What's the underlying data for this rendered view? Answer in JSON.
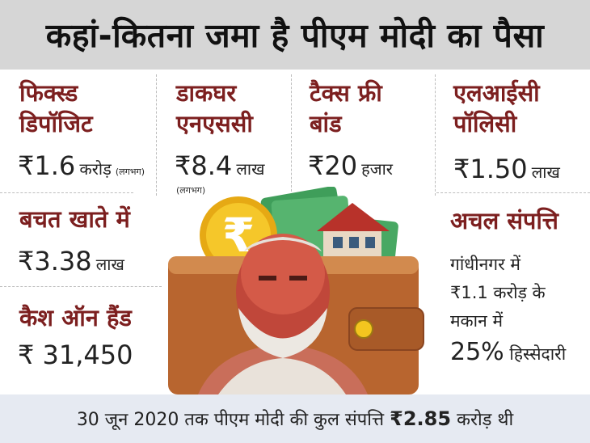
{
  "title": "कहां-कितना जमा है पीएम मोदी का पैसा",
  "fixed_deposit": {
    "heading_1": "फिक्स्ड",
    "heading_2": "डिपॉजिट",
    "amount": "₹1.6",
    "unit": "करोड़",
    "note": "(लगभग)"
  },
  "post_office_nsc": {
    "heading_1": "डाकघर",
    "heading_2": "एनएससी",
    "amount": "₹8.4",
    "unit": "लाख",
    "note": "(लगभग)"
  },
  "tax_free_bond": {
    "heading_1": "टैक्स फ्री",
    "heading_2": "बांड",
    "amount": "₹20",
    "unit": "हजार"
  },
  "lic_policy": {
    "heading_1": "एलआईसी",
    "heading_2": "पॉलिसी",
    "amount": "₹1.50",
    "unit": "लाख"
  },
  "savings_account": {
    "heading": "बचत खाते में",
    "amount": "₹3.38",
    "unit": "लाख"
  },
  "cash_on_hand": {
    "heading": "कैश ऑन हैंड",
    "amount": "₹ 31,450"
  },
  "immovable_property": {
    "heading": "अचल संपत्ति",
    "line_1": "गांधीनगर में",
    "line_2": "₹1.1 करोड़ के",
    "line_3": "मकान में",
    "share_pct": "25%",
    "share_text": "हिस्सेदारी"
  },
  "footer": {
    "prefix": "30 जून 2020 तक पीएम मोदी की कुल संपत्ति",
    "amount": "₹2.85",
    "suffix": "करोड़ थी"
  },
  "colors": {
    "heading": "#7c1f1f",
    "title_bg": "#d6d6d6",
    "footer_bg": "#e6eaf2",
    "wallet": "#c0703a",
    "coin": "#f2c21b",
    "notes": "#3f9e5a"
  },
  "icons": [
    "rupee-coin-icon",
    "house-icon",
    "wallet-icon",
    "portrait-illustration"
  ]
}
